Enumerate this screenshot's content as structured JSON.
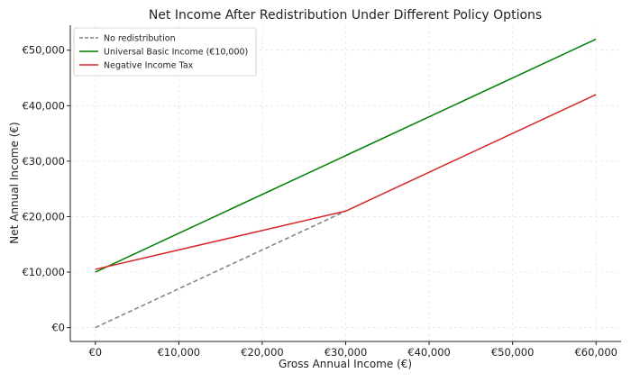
{
  "chart_data": {
    "type": "line",
    "title": "Net Income After Redistribution Under Different Policy Options",
    "xlabel": "Gross Annual Income (€)",
    "ylabel": "Net Annual Income (€)",
    "xlim": [
      -3000,
      63000
    ],
    "ylim": [
      -2500,
      54500
    ],
    "x_ticks": [
      0,
      10000,
      20000,
      30000,
      40000,
      50000,
      60000
    ],
    "x_tick_labels": [
      "€0",
      "€10,000",
      "€20,000",
      "€30,000",
      "€40,000",
      "€50,000",
      "€60,000"
    ],
    "y_ticks": [
      0,
      10000,
      20000,
      30000,
      40000,
      50000
    ],
    "y_tick_labels": [
      "€0",
      "€10,000",
      "€20,000",
      "€30,000",
      "€40,000",
      "€50,000"
    ],
    "grid": true,
    "legend_position": "top-left",
    "series": [
      {
        "name": "No redistribution",
        "color": "#808080",
        "dash": "dashed",
        "points": [
          [
            0,
            0
          ],
          [
            30000,
            21000
          ]
        ]
      },
      {
        "name": "Universal Basic Income (€10,000)",
        "color": "#008000",
        "dash": "solid",
        "points": [
          [
            0,
            10000
          ],
          [
            60000,
            52000
          ]
        ]
      },
      {
        "name": "Negative Income Tax",
        "color": "#d62728",
        "dash": "solid",
        "points": [
          [
            0,
            10500
          ],
          [
            30000,
            21000
          ],
          [
            60000,
            42000
          ]
        ]
      }
    ]
  }
}
